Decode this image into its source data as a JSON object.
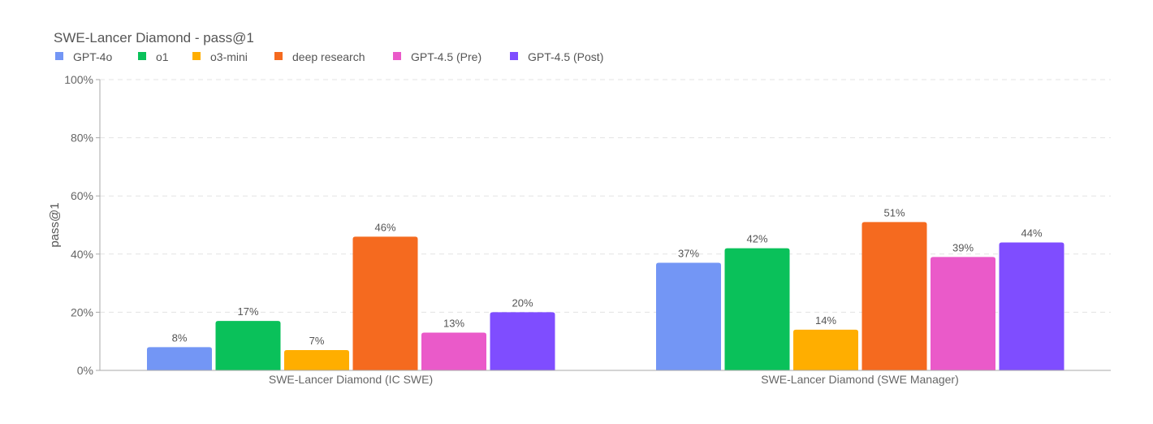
{
  "chart_data": {
    "type": "bar",
    "title": "SWE-Lancer Diamond - pass@1",
    "xlabel": "",
    "ylabel": "pass@1",
    "ylim": [
      0,
      100
    ],
    "yticks": [
      "0%",
      "20%",
      "40%",
      "60%",
      "80%",
      "100%"
    ],
    "ytick_values": [
      0,
      20,
      40,
      60,
      80,
      100
    ],
    "grid": true,
    "legend_position": "top-left",
    "categories": [
      "SWE-Lancer Diamond (IC SWE)",
      "SWE-Lancer Diamond (SWE Manager)"
    ],
    "series": [
      {
        "name": "GPT-4o",
        "color": "#7396F5",
        "values": [
          8,
          37
        ],
        "labels": [
          "8%",
          "37%"
        ]
      },
      {
        "name": "o1",
        "color": "#0AC15A",
        "values": [
          17,
          42
        ],
        "labels": [
          "17%",
          "42%"
        ]
      },
      {
        "name": "o3-mini",
        "color": "#FFAE00",
        "values": [
          7,
          14
        ],
        "labels": [
          "7%",
          "14%"
        ]
      },
      {
        "name": "deep research",
        "color": "#F56A1F",
        "values": [
          46,
          51
        ],
        "labels": [
          "46%",
          "51%"
        ]
      },
      {
        "name": "GPT-4.5 (Pre)",
        "color": "#EA5AC9",
        "values": [
          13,
          39
        ],
        "labels": [
          "13%",
          "39%"
        ]
      },
      {
        "name": "GPT-4.5 (Post)",
        "color": "#7F4DFF",
        "values": [
          20,
          44
        ],
        "labels": [
          "20%",
          "44%"
        ]
      }
    ]
  }
}
